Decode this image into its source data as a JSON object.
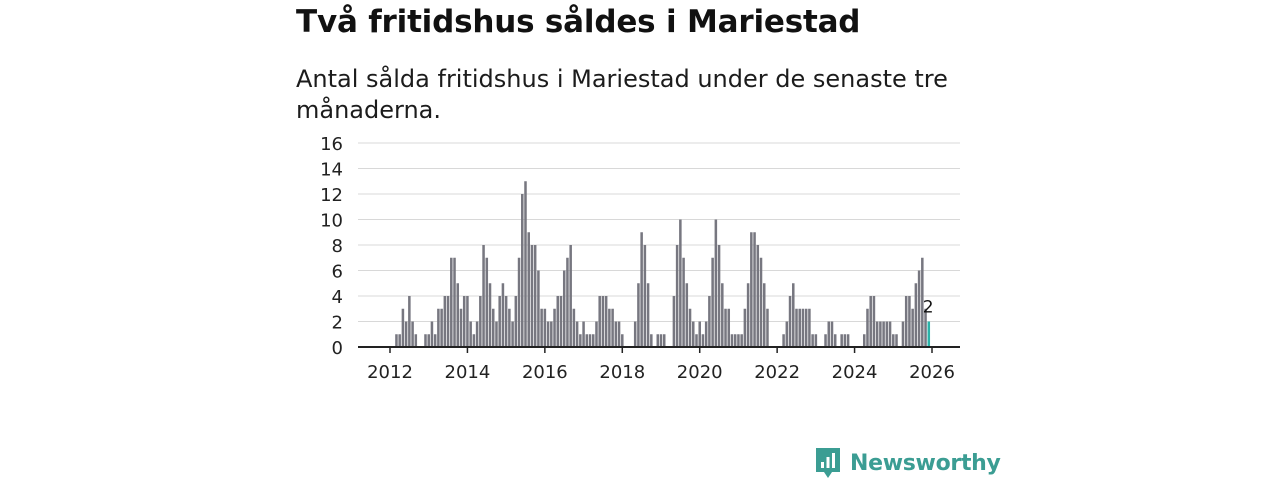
{
  "header": {
    "title": "Två fritidshus såldes i Mariestad",
    "subtitle": "Antal sålda fritidshus i Mariestad under de senaste tre månaderna."
  },
  "branding": {
    "name": "Newsworthy"
  },
  "colors": {
    "bar": "#777780",
    "highlight": "#2bb3a9",
    "grid": "#d8d8d8",
    "axis": "#222222",
    "brand": "#3b9d93"
  },
  "chart_data": {
    "type": "bar",
    "title": "Två fritidshus såldes i Mariestad",
    "subtitle": "Antal sålda fritidshus i Mariestad under de senaste tre månaderna.",
    "xlabel": "",
    "ylabel": "",
    "ylim": [
      0,
      16
    ],
    "yticks": [
      0,
      2,
      4,
      6,
      8,
      10,
      12,
      14,
      16
    ],
    "xticks": [
      "2012",
      "2014",
      "2016",
      "2018",
      "2020",
      "2022",
      "2024",
      "2026"
    ],
    "grid": true,
    "start": "2011-12",
    "interval": "month",
    "values": [
      0,
      0,
      0,
      1,
      1,
      3,
      2,
      4,
      2,
      1,
      0,
      0,
      1,
      1,
      2,
      1,
      3,
      3,
      4,
      4,
      7,
      7,
      5,
      3,
      4,
      4,
      2,
      1,
      2,
      4,
      8,
      7,
      5,
      3,
      2,
      4,
      5,
      4,
      3,
      2,
      4,
      7,
      12,
      13,
      9,
      8,
      8,
      6,
      3,
      3,
      2,
      2,
      3,
      4,
      4,
      6,
      7,
      8,
      3,
      2,
      1,
      2,
      1,
      1,
      1,
      2,
      4,
      4,
      4,
      3,
      3,
      2,
      2,
      1,
      0,
      0,
      0,
      2,
      5,
      9,
      8,
      5,
      1,
      0,
      1,
      1,
      1,
      0,
      0,
      4,
      8,
      10,
      7,
      5,
      3,
      2,
      1,
      2,
      1,
      2,
      4,
      7,
      10,
      8,
      5,
      3,
      3,
      1,
      1,
      1,
      1,
      3,
      5,
      9,
      9,
      8,
      7,
      5,
      3,
      0,
      0,
      0,
      0,
      1,
      2,
      4,
      5,
      3,
      3,
      3,
      3,
      3,
      1,
      1,
      0,
      0,
      1,
      2,
      2,
      1,
      0,
      1,
      1,
      1,
      0,
      0,
      0,
      0,
      1,
      3,
      4,
      4,
      2,
      2,
      2,
      2,
      2,
      1,
      1,
      0,
      2,
      4,
      4,
      3,
      5,
      6,
      7,
      3,
      2
    ],
    "highlight_last": true,
    "last_value_label": "2"
  }
}
